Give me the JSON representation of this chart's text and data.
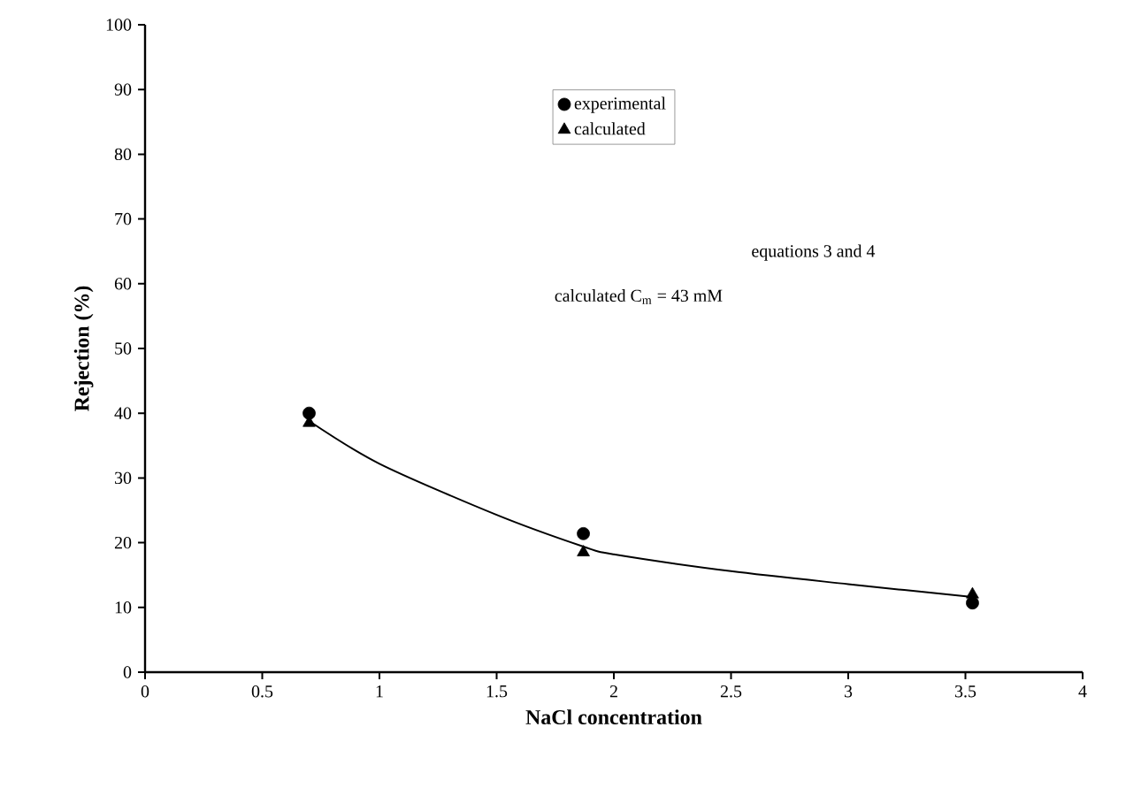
{
  "chart_data": {
    "type": "scatter",
    "xlabel": "NaCl concentration",
    "ylabel": "Rejection (%)",
    "series": [
      {
        "name": "experimental",
        "color": "#000000",
        "marker": "circle",
        "x": [
          0.7,
          1.87,
          3.53
        ],
        "values": [
          40.0,
          21.4,
          10.7
        ]
      },
      {
        "name": "calculated",
        "color": "#000000",
        "marker": "triangle",
        "x": [
          0.7,
          1.87,
          3.53
        ],
        "values": [
          38.5,
          18.5,
          12.0
        ]
      },
      {
        "type": "line",
        "color": "#000000",
        "marker": "none",
        "x": [
          0.7,
          1.0,
          1.5,
          1.87,
          2.0,
          2.5,
          3.0,
          3.53
        ],
        "values": [
          38.8,
          32.2,
          24.3,
          19.4,
          18.2,
          15.6,
          13.6,
          11.6
        ]
      }
    ],
    "annotations": [
      "equations 3 and 4",
      "calculated C$_{m}$ = 43 mM"
    ],
    "xlim": [
      0,
      4
    ],
    "xticks": [
      0,
      0.5,
      1,
      1.5,
      2,
      2.5,
      3,
      3.5,
      4
    ],
    "ylim": [
      0,
      100
    ],
    "yticks": [
      0,
      10,
      20,
      30,
      40,
      50,
      60,
      70,
      80,
      90,
      100
    ],
    "legend": "top",
    "grid": false
  }
}
